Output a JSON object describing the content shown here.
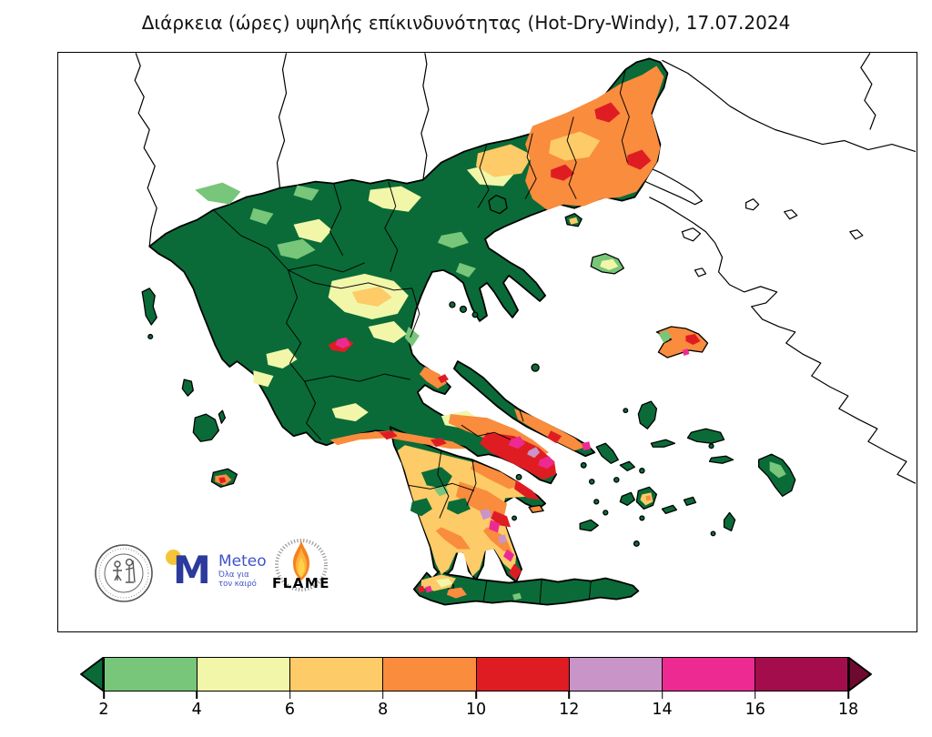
{
  "title": "Διάρκεια (ώρες) υψηλής επίκινδυνότητας (Hot-Dry-Windy), 17.07.2024",
  "logos": {
    "meteo": {
      "name": "Meteo",
      "tagline_line1": "Όλα για",
      "tagline_line2": "τον καιρό"
    },
    "flame": {
      "label": "FLAME"
    }
  },
  "colorbar": {
    "tick_labels": [
      "2",
      "4",
      "6",
      "8",
      "10",
      "12",
      "14",
      "16",
      "18"
    ],
    "segment_colors": [
      "#77c679",
      "#f2f6a9",
      "#fdcb67",
      "#f98c3d",
      "#e01c23",
      "#c994c8",
      "#ed2a92",
      "#a30d4b"
    ],
    "under_arrow_color": "#0a6b38",
    "over_arrow_color": "#6e0a2f",
    "outline_color": "#000000"
  },
  "palette": {
    "under": "#0a6b38",
    "g2_4": "#77c679",
    "g4_6": "#f2f6a9",
    "g6_8": "#fdcb67",
    "g8_10": "#f98c3d",
    "g10_12": "#e01c23",
    "g12_14": "#c994c8",
    "g14_16": "#ed2a92",
    "g16_18": "#a30d4b",
    "sea": "#ffffff",
    "outline": "#000000",
    "meteo_blue": "#2b3a9c",
    "meteo_text_blue": "#4054c7",
    "meteo_yellow": "#f6c437",
    "seal_gray": "#555555",
    "flame_orange": "#f4821f",
    "flame_yellow": "#ffd24a",
    "flame_red": "#d94f10"
  }
}
